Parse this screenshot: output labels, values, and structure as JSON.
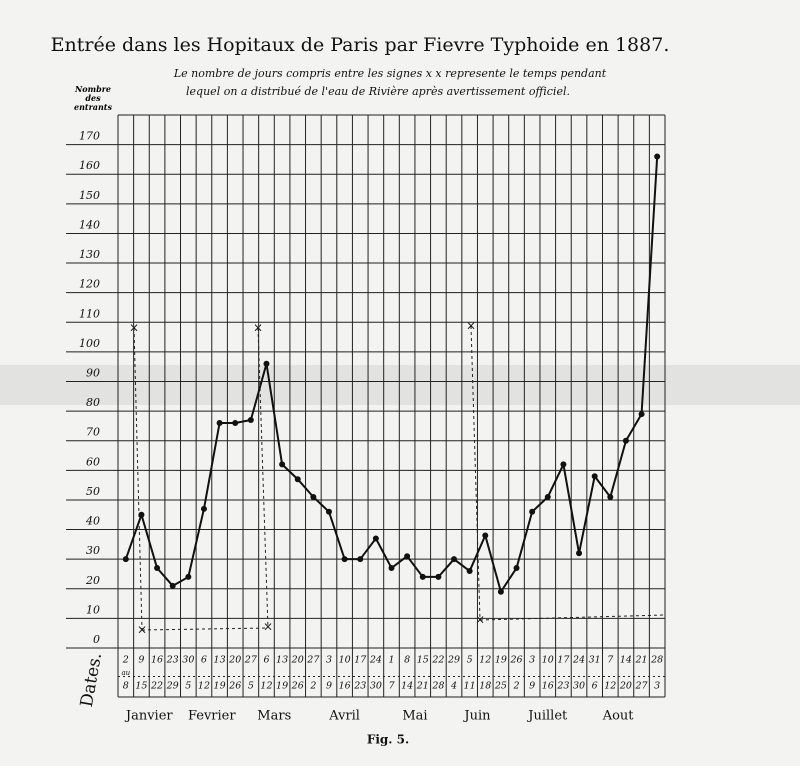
{
  "chart_data": {
    "type": "line",
    "title": "Entrée dans les Hopitaux de Paris par Fievre Typhoide en 1887.",
    "subtitle": [
      "Le nombre de jours compris entre les signes x x represente le temps pendant",
      "lequel on a distribué de l'eau de Rivière après avertissement officiel."
    ],
    "y_label": "Nombre des entrants",
    "x_label": "Dates.",
    "caption": "Fig. 5.",
    "range_word": "au",
    "categories": [
      "2",
      "9",
      "16",
      "23",
      "30",
      "6",
      "13",
      "20",
      "27",
      "6",
      "13",
      "20",
      "27",
      "3",
      "10",
      "17",
      "24",
      "1",
      "8",
      "15",
      "22",
      "29",
      "5",
      "12",
      "19",
      "26",
      "3",
      "10",
      "17",
      "24",
      "31",
      "7",
      "14",
      "21",
      "28"
    ],
    "category_ends": [
      "8",
      "15",
      "22",
      "29",
      "5",
      "12",
      "19",
      "26",
      "5",
      "12",
      "19",
      "26",
      "2",
      "9",
      "16",
      "23",
      "30",
      "7",
      "14",
      "21",
      "28",
      "4",
      "11",
      "18",
      "25",
      "2",
      "9",
      "16",
      "23",
      "30",
      "6",
      "12",
      "20",
      "27",
      "3"
    ],
    "months": [
      "Janvier",
      "Fevrier",
      "Mars",
      "Avril",
      "Mai",
      "Juin",
      "Juillet",
      "Aout"
    ],
    "series": [
      {
        "name": "Entrants",
        "color": "#111111",
        "values": [
          30,
          45,
          27,
          21,
          24,
          47,
          76,
          76,
          77,
          96,
          62,
          57,
          51,
          46,
          30,
          30,
          37,
          27,
          31,
          24,
          24,
          30,
          26,
          38,
          19,
          27,
          46,
          51,
          62,
          32,
          58,
          51,
          70,
          79,
          166
        ]
      }
    ],
    "ylim": [
      0,
      180
    ],
    "yticks": [
      0,
      10,
      20,
      30,
      40,
      50,
      60,
      70,
      80,
      90,
      100,
      110,
      120,
      130,
      140,
      150,
      160,
      170
    ],
    "grid": true
  }
}
